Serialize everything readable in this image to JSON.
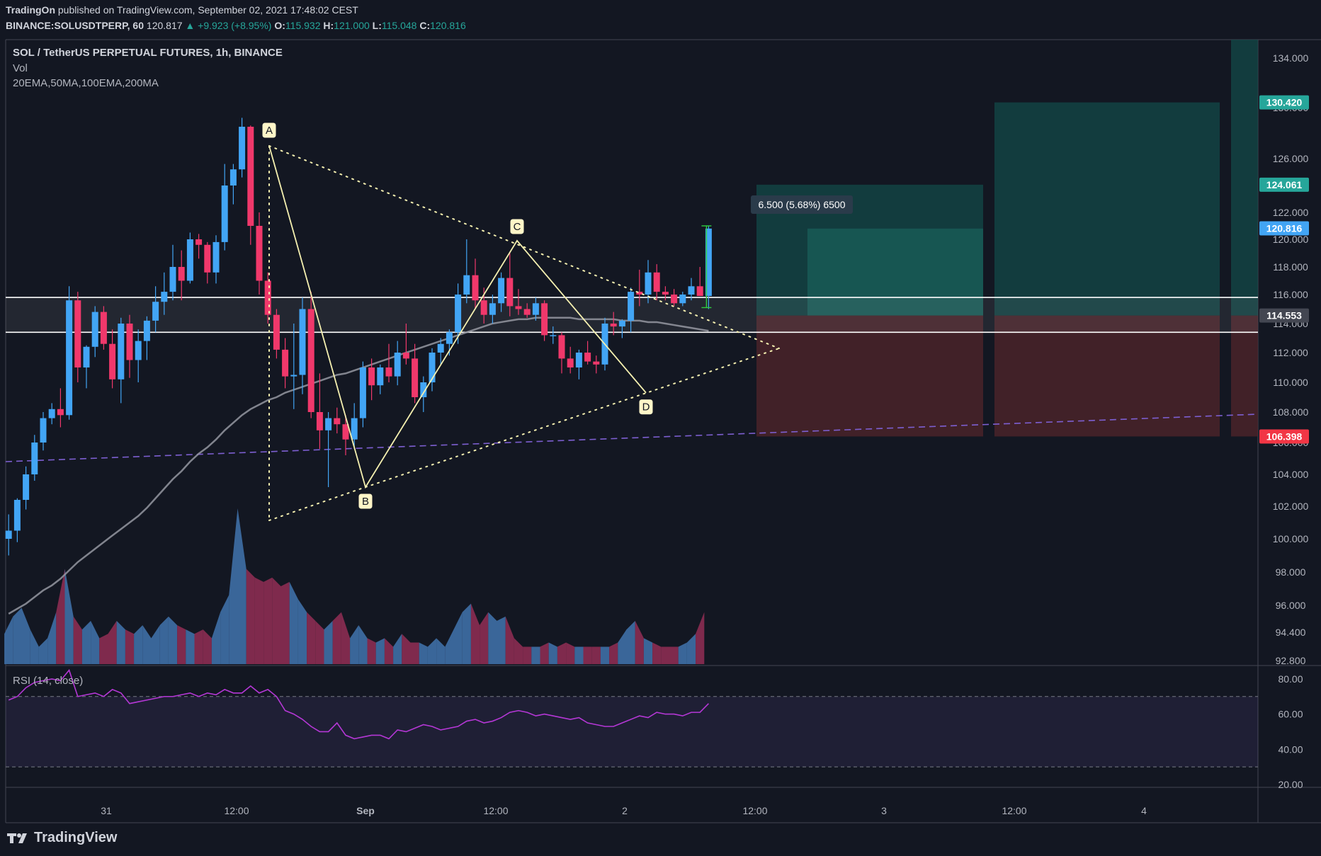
{
  "header": {
    "publisher": "TradingOn",
    "published_text": "published on TradingView.com, September 02, 2021 17:48:02 CEST",
    "symbol": "BINANCE:SOLUSDTPERP, 60",
    "last": "120.817",
    "change": "▲ +9.923 (+8.95%)",
    "o_label": "O:",
    "o": "115.932",
    "h_label": "H:",
    "h": "121.000",
    "l_label": "L:",
    "l": "115.048",
    "c_label": "C:",
    "c": "120.816"
  },
  "legend": {
    "title": "SOL / TetherUS PERPETUAL FUTURES, 1h, BINANCE",
    "vol": "Vol",
    "ma": "20EMA,50MA,100EMA,200MA",
    "rsi": "RSI (14, close)"
  },
  "measure_label": "6.500 (5.68%) 6500",
  "pattern_labels": [
    "A",
    "B",
    "C",
    "D"
  ],
  "footer": {
    "brand": "TradingView"
  },
  "colors": {
    "background": "#131722",
    "up": "#42a5f5",
    "down": "#f0386b",
    "profit_zone": "#134a48",
    "loss_zone": "#4a2329",
    "rsi": "#b537d6",
    "ma": "#9598a1",
    "trend_dashed": "#7d5fd1",
    "pattern": "#f5f0b0"
  },
  "chart_data": [
    {
      "type": "candlestick",
      "title": "SOL / TetherUS PERPETUAL FUTURES, 1h, BINANCE",
      "x_ticks": [
        "31",
        "12:00",
        "Sep",
        "12:00",
        "2",
        "12:00",
        "3",
        "12:00",
        "4"
      ],
      "y_ticks": [
        "134.000",
        "130.000",
        "126.000",
        "122.000",
        "120.000",
        "118.000",
        "116.000",
        "114.000",
        "112.000",
        "110.000",
        "108.000",
        "106.000",
        "104.000",
        "102.000",
        "100.000",
        "98.000",
        "96.000",
        "94.400",
        "92.800"
      ],
      "price_badges": [
        {
          "label": "130.420",
          "value": 130.42,
          "color": "#26a69a"
        },
        {
          "label": "124.061",
          "value": 124.061,
          "color": "#26a69a"
        },
        {
          "label": "120.816",
          "value": 120.816,
          "color": "#42a5f5"
        },
        {
          "label": "114.553",
          "value": 114.553,
          "color": "#434651"
        },
        {
          "label": "106.398",
          "value": 106.398,
          "color": "#f23645"
        }
      ],
      "ohlc": [
        [
          100.0,
          101.5,
          99.0,
          100.5
        ],
        [
          100.5,
          102.5,
          99.8,
          102.4
        ],
        [
          102.4,
          104.5,
          101.8,
          104.0
        ],
        [
          104.0,
          106.5,
          103.6,
          106.0
        ],
        [
          106.0,
          108.0,
          105.5,
          107.6
        ],
        [
          107.6,
          108.6,
          107.2,
          108.2
        ],
        [
          108.2,
          109.6,
          107.0,
          107.8
        ],
        [
          107.8,
          116.6,
          107.5,
          115.6
        ],
        [
          115.6,
          116.2,
          110.0,
          111.0
        ],
        [
          111.0,
          112.5,
          109.6,
          112.4
        ],
        [
          112.4,
          115.2,
          111.7,
          114.8
        ],
        [
          114.8,
          115.2,
          112.2,
          112.6
        ],
        [
          112.6,
          113.6,
          109.6,
          110.2
        ],
        [
          110.2,
          114.4,
          108.6,
          114.0
        ],
        [
          114.0,
          114.6,
          110.3,
          111.5
        ],
        [
          111.5,
          113.6,
          110.0,
          112.8
        ],
        [
          112.8,
          114.5,
          111.5,
          114.2
        ],
        [
          114.2,
          116.6,
          113.4,
          115.5
        ],
        [
          115.5,
          117.6,
          114.6,
          116.2
        ],
        [
          116.2,
          119.6,
          115.6,
          118.0
        ],
        [
          118.0,
          119.2,
          115.6,
          117.0
        ],
        [
          117.0,
          120.5,
          116.8,
          120.0
        ],
        [
          120.0,
          120.4,
          118.6,
          119.6
        ],
        [
          119.6,
          119.8,
          116.8,
          117.6
        ],
        [
          117.6,
          120.3,
          116.8,
          119.8
        ],
        [
          119.8,
          125.6,
          119.2,
          124.0
        ],
        [
          124.0,
          125.6,
          122.6,
          125.2
        ],
        [
          125.2,
          129.2,
          124.6,
          128.5
        ],
        [
          128.5,
          128.6,
          119.6,
          121.0
        ],
        [
          121.0,
          122.0,
          116.0,
          117.0
        ],
        [
          117.0,
          117.6,
          114.0,
          114.6
        ],
        [
          114.6,
          115.0,
          111.6,
          112.2
        ],
        [
          112.2,
          113.0,
          109.6,
          110.4
        ],
        [
          110.4,
          114.0,
          108.2,
          110.5
        ],
        [
          110.5,
          115.8,
          109.2,
          115.0
        ],
        [
          115.0,
          116.2,
          107.6,
          108.0
        ],
        [
          108.0,
          110.6,
          105.6,
          106.8
        ],
        [
          106.8,
          108.0,
          103.2,
          107.6
        ],
        [
          107.6,
          108.3,
          106.6,
          107.2
        ],
        [
          107.2,
          107.8,
          105.2,
          106.2
        ],
        [
          106.2,
          108.6,
          105.6,
          107.6
        ],
        [
          107.6,
          111.4,
          107.0,
          111.0
        ],
        [
          111.0,
          111.6,
          108.8,
          109.8
        ],
        [
          109.8,
          111.2,
          109.2,
          111.0
        ],
        [
          111.0,
          112.6,
          110.0,
          110.4
        ],
        [
          110.4,
          112.8,
          109.8,
          112.0
        ],
        [
          112.0,
          114.0,
          111.2,
          111.6
        ],
        [
          111.6,
          112.6,
          108.6,
          109.0
        ],
        [
          109.0,
          110.4,
          108.0,
          110.0
        ],
        [
          110.0,
          112.3,
          109.4,
          112.0
        ],
        [
          112.0,
          113.0,
          111.2,
          112.6
        ],
        [
          112.6,
          113.6,
          111.8,
          113.4
        ],
        [
          113.4,
          116.8,
          112.6,
          116.0
        ],
        [
          116.0,
          120.0,
          115.4,
          117.4
        ],
        [
          117.4,
          118.6,
          115.0,
          115.6
        ],
        [
          115.6,
          116.5,
          114.0,
          114.6
        ],
        [
          114.6,
          116.0,
          114.0,
          115.4
        ],
        [
          115.4,
          117.6,
          114.8,
          117.2
        ],
        [
          117.2,
          119.0,
          114.5,
          115.2
        ],
        [
          115.2,
          116.4,
          114.6,
          115.0
        ],
        [
          115.0,
          115.4,
          114.4,
          114.6
        ],
        [
          114.6,
          115.8,
          114.2,
          115.4
        ],
        [
          115.4,
          115.6,
          112.8,
          113.2
        ],
        [
          113.2,
          113.8,
          112.6,
          113.2
        ],
        [
          113.2,
          113.4,
          110.6,
          111.6
        ],
        [
          111.6,
          112.4,
          110.6,
          111.0
        ],
        [
          111.0,
          112.2,
          110.2,
          112.0
        ],
        [
          112.0,
          112.8,
          111.2,
          111.4
        ],
        [
          111.4,
          111.8,
          110.6,
          111.2
        ],
        [
          111.2,
          114.4,
          110.8,
          114.0
        ],
        [
          114.0,
          114.8,
          113.2,
          113.8
        ],
        [
          113.8,
          114.3,
          113.0,
          114.2
        ],
        [
          114.2,
          116.5,
          113.4,
          116.2
        ],
        [
          116.2,
          117.8,
          115.2,
          116.0
        ],
        [
          116.0,
          118.5,
          115.4,
          117.6
        ],
        [
          117.6,
          118.2,
          115.6,
          116.2
        ],
        [
          116.2,
          116.6,
          115.6,
          116.0
        ],
        [
          116.0,
          116.4,
          115.2,
          115.4
        ],
        [
          115.4,
          116.2,
          115.2,
          116.0
        ],
        [
          116.0,
          117.2,
          115.6,
          116.6
        ],
        [
          116.6,
          118.0,
          115.9,
          115.9
        ],
        [
          115.9,
          121.0,
          115.0,
          120.8
        ]
      ],
      "volume_max": 180,
      "volume": [
        35,
        55,
        65,
        40,
        20,
        30,
        60,
        110,
        55,
        40,
        50,
        30,
        35,
        50,
        40,
        35,
        45,
        30,
        45,
        55,
        45,
        40,
        35,
        40,
        30,
        60,
        80,
        180,
        110,
        100,
        95,
        100,
        90,
        95,
        75,
        60,
        50,
        40,
        50,
        60,
        30,
        45,
        30,
        25,
        30,
        20,
        35,
        25,
        25,
        20,
        30,
        20,
        40,
        60,
        70,
        45,
        60,
        50,
        55,
        30,
        20,
        20,
        20,
        25,
        20,
        25,
        20,
        20,
        20,
        20,
        20,
        25,
        40,
        50,
        30,
        25,
        20,
        20,
        20,
        25,
        35,
        60
      ],
      "rsi_ylim": [
        20,
        86
      ],
      "rsi_levels": [
        70,
        30
      ],
      "rsi_ticks": [
        "80.00",
        "60.00",
        "40.00",
        "20.00"
      ],
      "rsi": [
        68,
        70,
        75,
        78,
        79,
        80,
        79,
        85,
        70,
        71,
        72,
        70,
        74,
        72,
        66,
        67,
        68,
        69,
        70,
        70,
        71,
        72,
        70,
        72,
        71,
        74,
        72,
        72,
        76,
        72,
        74,
        70,
        62,
        60,
        57,
        53,
        50,
        50,
        55,
        48,
        46,
        47,
        48,
        48,
        46,
        51,
        50,
        52,
        54,
        53,
        51,
        52,
        53,
        56,
        57,
        55,
        56,
        58,
        61,
        62,
        61,
        59,
        60,
        59,
        58,
        57,
        58,
        55,
        54,
        53,
        53,
        55,
        57,
        59,
        58,
        61,
        60,
        60,
        59,
        61,
        61,
        66
      ],
      "pattern_points": {
        "A": 127.0,
        "B": 103.2,
        "C": 119.9,
        "D": 109.3
      },
      "levels": [
        115.8,
        113.4
      ],
      "ma_50": [
        95.5,
        95.8,
        96.1,
        96.5,
        96.9,
        97.2,
        97.6,
        98.1,
        98.6,
        99.0,
        99.4,
        99.8,
        100.2,
        100.6,
        101.0,
        101.4,
        101.9,
        102.5,
        103.1,
        103.7,
        104.2,
        104.8,
        105.3,
        105.7,
        106.2,
        106.8,
        107.3,
        107.8,
        108.2,
        108.5,
        108.8,
        109.0,
        109.3,
        109.5,
        109.7,
        109.9,
        110.1,
        110.3,
        110.5,
        110.6,
        110.8,
        111.0,
        111.2,
        111.4,
        111.6,
        111.8,
        112.0,
        112.2,
        112.4,
        112.6,
        112.8,
        113.0,
        113.2,
        113.4,
        113.6,
        113.8,
        114.0,
        114.1,
        114.2,
        114.3,
        114.3,
        114.4,
        114.4,
        114.4,
        114.4,
        114.4,
        114.3,
        114.3,
        114.3,
        114.3,
        114.3,
        114.2,
        114.2,
        114.2,
        114.1,
        114.1,
        114.0,
        113.9,
        113.8,
        113.7,
        113.6,
        113.5
      ]
    }
  ],
  "position": {
    "entry": 114.553,
    "target_1": 124.061,
    "target_2": 130.42,
    "stop": 106.398
  }
}
